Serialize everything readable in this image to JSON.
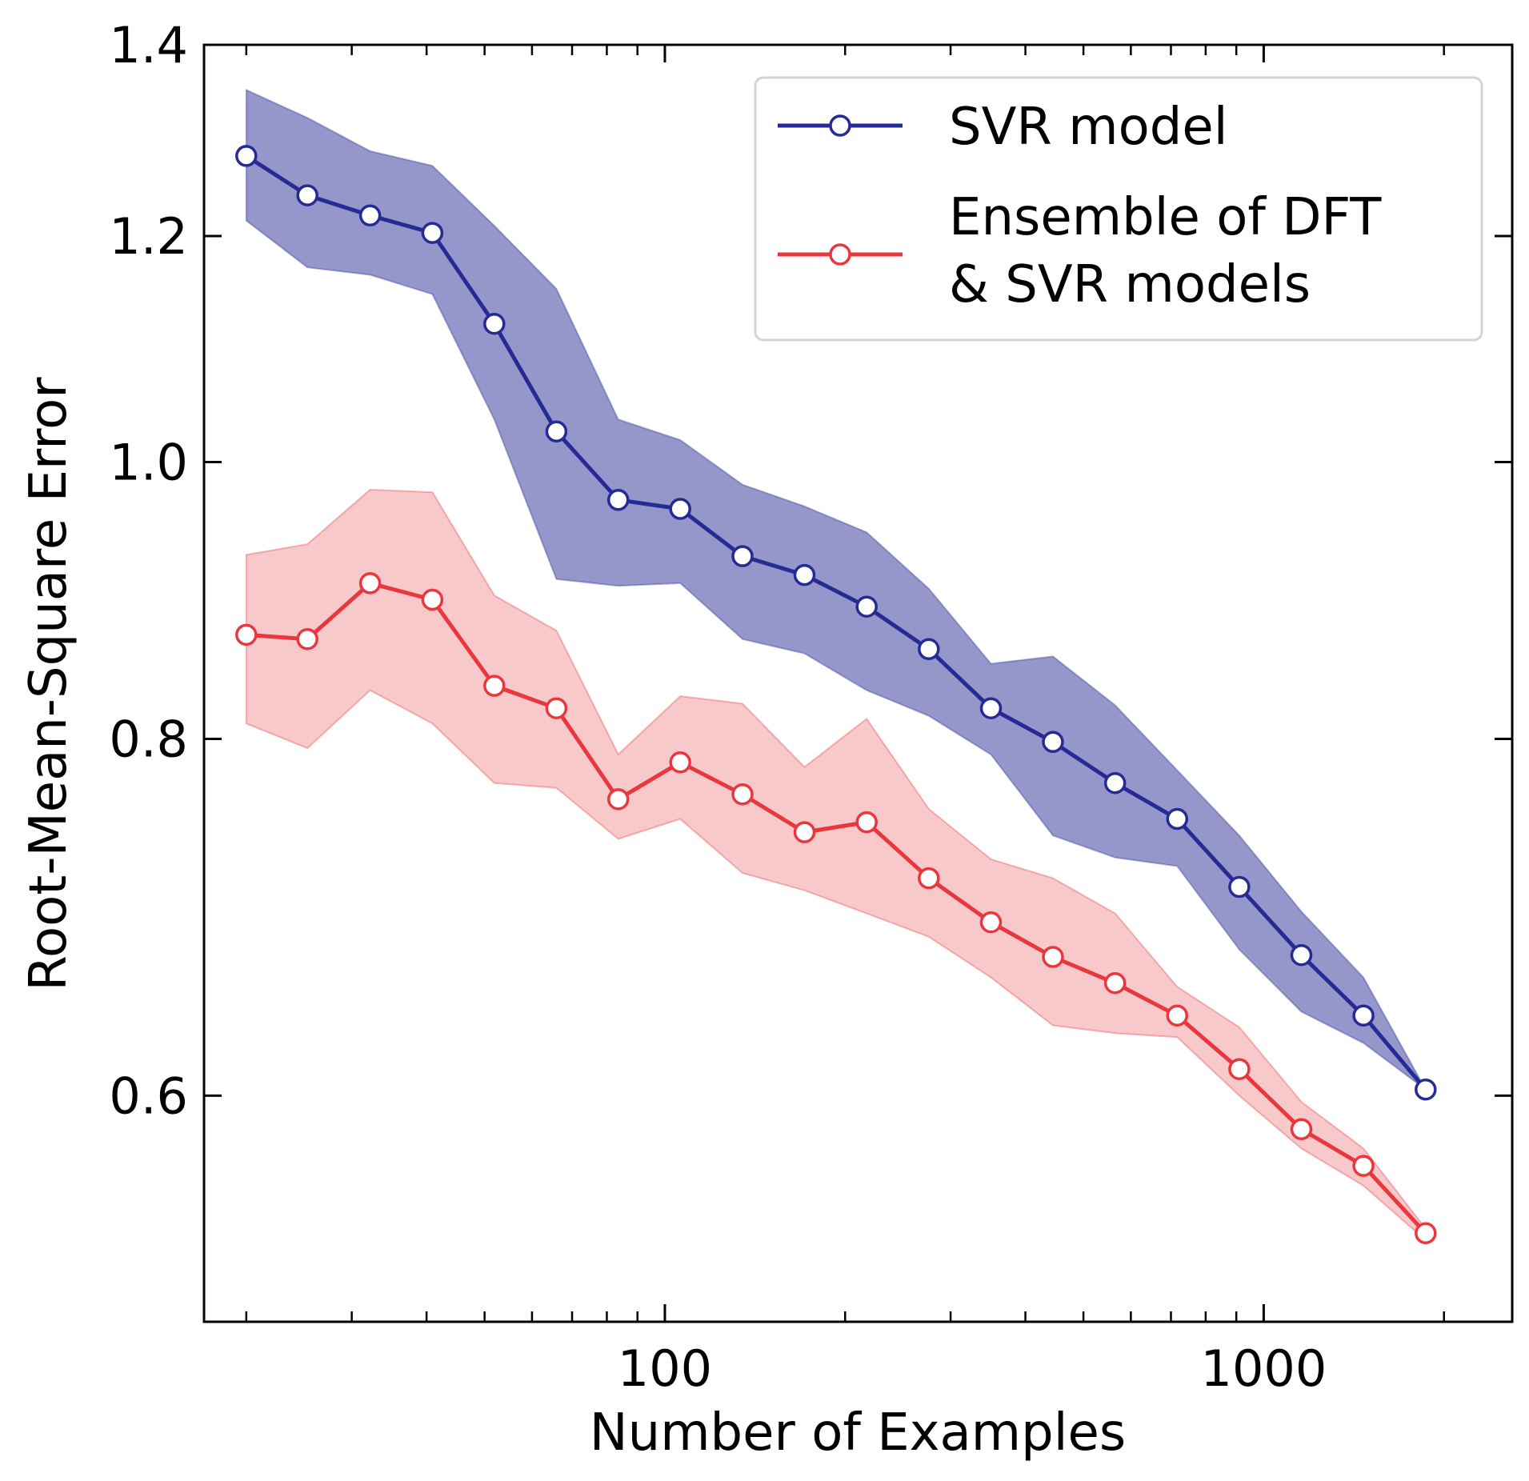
{
  "chart_data": {
    "type": "line",
    "title": "",
    "xlabel": "Number of Examples",
    "ylabel": "Root-Mean-Square Error",
    "xscale": "log",
    "yscale": "log",
    "xlim": [
      17,
      2600
    ],
    "ylim": [
      0.5,
      1.4
    ],
    "x_ticks": [
      {
        "value": 100,
        "label": "100"
      },
      {
        "value": 1000,
        "label": "1000"
      }
    ],
    "y_ticks": [
      {
        "value": 0.6,
        "label": "0.6"
      },
      {
        "value": 0.8,
        "label": "0.8"
      },
      {
        "value": 1.0,
        "label": "1.0"
      },
      {
        "value": 1.2,
        "label": "1.2"
      },
      {
        "value": 1.4,
        "label": "1.4"
      }
    ],
    "grid": false,
    "legend_position": "top-right",
    "legend": [
      "SVR model",
      "Ensemble of DFT\n& SVR models"
    ],
    "x": [
      20,
      25.3,
      32.2,
      40.9,
      51.9,
      65.9,
      83.6,
      106.1,
      134.8,
      171.1,
      217.3,
      275.9,
      350.3,
      444.7,
      564.7,
      717,
      910.4,
      1156,
      1467.7,
      1863.6
    ],
    "series": [
      {
        "name": "SVR model",
        "color": "#262a94",
        "band_color": "#9597cb",
        "values": [
          1.28,
          1.24,
          1.22,
          1.203,
          1.118,
          1.025,
          0.97,
          0.963,
          0.927,
          0.913,
          0.89,
          0.86,
          0.82,
          0.798,
          0.772,
          0.75,
          0.71,
          0.672,
          0.64,
          0.603
        ],
        "upper": [
          1.35,
          1.32,
          1.285,
          1.27,
          1.21,
          1.15,
          1.035,
          1.018,
          0.982,
          0.965,
          0.945,
          0.903,
          0.85,
          0.855,
          0.822,
          0.78,
          0.74,
          0.696,
          0.66,
          0.603
        ],
        "lower": [
          1.215,
          1.17,
          1.163,
          1.145,
          1.035,
          0.91,
          0.905,
          0.907,
          0.867,
          0.857,
          0.832,
          0.815,
          0.79,
          0.74,
          0.727,
          0.722,
          0.675,
          0.642,
          0.626,
          0.603
        ]
      },
      {
        "name": "Ensemble of DFT\n& SVR models",
        "color": "#e8383d",
        "band_color": "#f8c9cb",
        "values": [
          0.87,
          0.867,
          0.907,
          0.895,
          0.835,
          0.82,
          0.762,
          0.785,
          0.765,
          0.742,
          0.748,
          0.715,
          0.69,
          0.671,
          0.657,
          0.64,
          0.613,
          0.584,
          0.567,
          0.537
        ],
        "upper": [
          0.928,
          0.936,
          0.978,
          0.976,
          0.898,
          0.873,
          0.79,
          0.828,
          0.823,
          0.782,
          0.813,
          0.756,
          0.726,
          0.715,
          0.695,
          0.655,
          0.634,
          0.597,
          0.575,
          0.539
        ],
        "lower": [
          0.81,
          0.794,
          0.832,
          0.81,
          0.772,
          0.769,
          0.738,
          0.75,
          0.718,
          0.708,
          0.695,
          0.682,
          0.66,
          0.635,
          0.631,
          0.629,
          0.6,
          0.575,
          0.558,
          0.534
        ]
      }
    ]
  }
}
